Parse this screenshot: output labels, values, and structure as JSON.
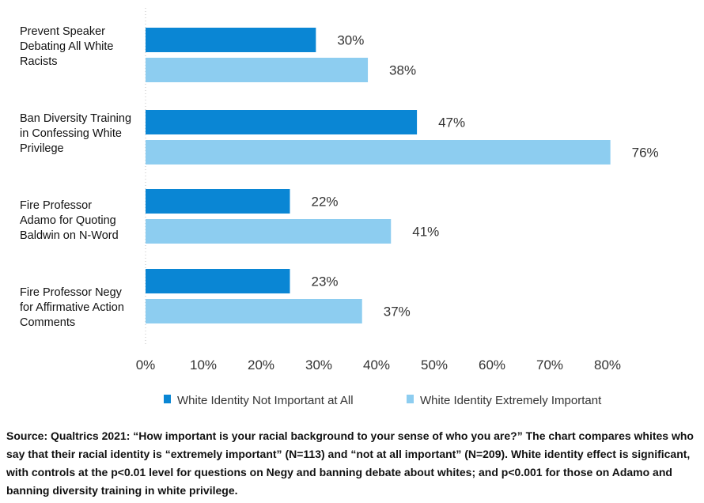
{
  "chart_data": {
    "type": "bar",
    "orientation": "horizontal",
    "categories": [
      "Prevent Speaker Debating All White Racists",
      "Ban Diversity Training in Confessing White Privilege",
      "Fire Professor Adamo for Quoting Baldwin on N-Word",
      "Fire Professor Negy for Affirmative Action Comments"
    ],
    "category_lines": [
      [
        "Prevent Speaker",
        "Debating All White",
        "Racists"
      ],
      [
        "Ban Diversity Training",
        "in Confessing White",
        "Privilege"
      ],
      [
        "Fire Professor",
        "Adamo for Quoting",
        "Baldwin on N-Word"
      ],
      [
        "Fire Professor Negy",
        "for Affirmative Action",
        "Comments"
      ]
    ],
    "series": [
      {
        "name": "White Identity Not Important at All",
        "color": "#0a86d4",
        "values": [
          30,
          47,
          22,
          23
        ]
      },
      {
        "name": "White Identity Extremely Important",
        "color": "#8dcdf0",
        "values": [
          38,
          76,
          41,
          37
        ]
      }
    ],
    "value_labels": [
      [
        "30%",
        "47%",
        "22%",
        "23%"
      ],
      [
        "38%",
        "76%",
        "41%",
        "37%"
      ]
    ],
    "bar_lengths": [
      [
        29.5,
        47,
        25,
        25
      ],
      [
        38.5,
        80.5,
        42.5,
        37.5
      ]
    ],
    "xlim": [
      0,
      80
    ],
    "xticks": [
      0,
      10,
      20,
      30,
      40,
      50,
      60,
      70,
      80
    ],
    "xtick_labels": [
      "0%",
      "10%",
      "20%",
      "30%",
      "40%",
      "50%",
      "60%",
      "70%",
      "80%"
    ],
    "legend_position": "bottom",
    "grid": false
  },
  "source_text": "Source: Qualtrics 2021: “How important is your racial background to your sense of who you are?” The chart compares whites who say that their racial identity is “extremely important” (N=113) and “not at all important” (N=209). White identity effect is significant, with controls at the p<0.01 level for questions on Negy and banning debate about whites; and p<0.001 for those on Adamo and banning diversity training in white privilege."
}
